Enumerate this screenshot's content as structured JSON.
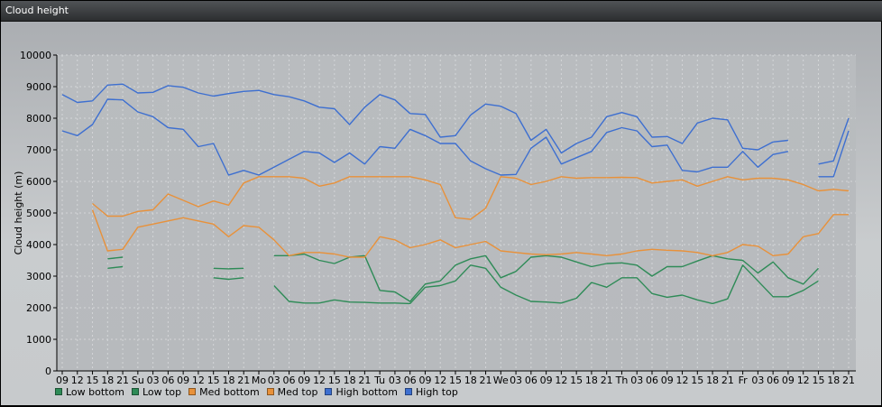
{
  "window": {
    "title": "Cloud height"
  },
  "colors": {
    "low": "#2e8b57",
    "med": "#e8913a",
    "high": "#3d6fd0"
  },
  "chart_data": {
    "type": "line",
    "ylabel": "Cloud height (m)",
    "ylim": [
      0,
      10000
    ],
    "yticks": [
      "0",
      "1000",
      "2000",
      "3000",
      "4000",
      "5000",
      "6000",
      "7000",
      "8000",
      "9000",
      "10000"
    ],
    "grid": true,
    "legend_position": "bottom-left",
    "x": [
      "09",
      "12",
      "15",
      "18",
      "21",
      "Su",
      "03",
      "06",
      "09",
      "12",
      "15",
      "18",
      "21",
      "Mo",
      "03",
      "06",
      "09",
      "12",
      "15",
      "18",
      "21",
      "Tu",
      "03",
      "06",
      "09",
      "12",
      "15",
      "18",
      "21",
      "We",
      "03",
      "06",
      "09",
      "12",
      "15",
      "18",
      "21",
      "Th",
      "03",
      "06",
      "09",
      "12",
      "15",
      "18",
      "21",
      "Fr",
      "03",
      "06",
      "09",
      "12",
      "15",
      "18",
      "21"
    ],
    "series": [
      {
        "name": "Low bottom",
        "color": "#2e8b57",
        "values": [
          null,
          null,
          null,
          3250,
          3300,
          null,
          null,
          null,
          null,
          null,
          2950,
          2900,
          2950,
          null,
          2700,
          2200,
          2150,
          2150,
          2250,
          2180,
          2170,
          2150,
          2150,
          2130,
          2650,
          2700,
          2850,
          3350,
          3250,
          2650,
          2400,
          2200,
          2180,
          2150,
          2300,
          2800,
          2650,
          2950,
          2950,
          2450,
          2330,
          2400,
          2250,
          2130,
          2280,
          3350,
          2850,
          2350,
          2350,
          2550,
          2850,
          null,
          null
        ]
      },
      {
        "name": "Low top",
        "color": "#2e8b57",
        "values": [
          null,
          null,
          null,
          3550,
          3600,
          null,
          null,
          null,
          null,
          null,
          3250,
          3230,
          3250,
          null,
          3650,
          3650,
          3700,
          3500,
          3400,
          3600,
          3650,
          2550,
          2500,
          2200,
          2750,
          2850,
          3350,
          3550,
          3650,
          2950,
          3150,
          3600,
          3650,
          3600,
          3450,
          3300,
          3400,
          3420,
          3350,
          3000,
          3300,
          3300,
          3480,
          3650,
          3550,
          3500,
          3100,
          3450,
          2950,
          2750,
          3250,
          null,
          null
        ]
      },
      {
        "name": "Med bottom",
        "color": "#e8913a",
        "values": [
          null,
          null,
          5100,
          3800,
          3850,
          4550,
          4650,
          4750,
          4850,
          4750,
          4650,
          4250,
          4600,
          4550,
          4150,
          3650,
          3750,
          3750,
          3700,
          3600,
          3600,
          4250,
          4150,
          3900,
          4000,
          4150,
          3900,
          4000,
          4100,
          3800,
          3750,
          3700,
          3680,
          3700,
          3750,
          3700,
          3650,
          3700,
          3800,
          3850,
          3820,
          3800,
          3750,
          3650,
          3750,
          4000,
          3950,
          3650,
          3700,
          4250,
          4350,
          4950,
          4950
        ]
      },
      {
        "name": "Med top",
        "color": "#e8913a",
        "values": [
          null,
          null,
          5300,
          4900,
          4900,
          5050,
          5100,
          5600,
          5400,
          5200,
          5380,
          5250,
          5950,
          6150,
          6150,
          6150,
          6100,
          5850,
          5950,
          6150,
          6150,
          6150,
          6150,
          6150,
          6050,
          5900,
          4850,
          4800,
          5150,
          6150,
          6100,
          5900,
          6000,
          6150,
          6100,
          6120,
          6120,
          6130,
          6120,
          5950,
          6000,
          6050,
          5850,
          6000,
          6150,
          6050,
          6100,
          6100,
          6050,
          5900,
          5700,
          5750,
          5700
        ]
      },
      {
        "name": "High bottom",
        "color": "#3d6fd0",
        "values": [
          7600,
          7450,
          7800,
          8600,
          8580,
          8200,
          8050,
          7700,
          7650,
          7100,
          7200,
          6200,
          6350,
          6200,
          6450,
          6700,
          6950,
          6900,
          6600,
          6900,
          6550,
          7100,
          7050,
          7650,
          7450,
          7200,
          7200,
          6650,
          6400,
          6200,
          6220,
          7050,
          7400,
          6550,
          6750,
          6950,
          7550,
          7700,
          7600,
          7100,
          7150,
          6350,
          6300,
          6450,
          6450,
          6950,
          6450,
          6850,
          6950,
          null,
          6150,
          6150,
          7600
        ]
      },
      {
        "name": "High top",
        "color": "#3d6fd0",
        "values": [
          8750,
          8500,
          8550,
          9050,
          9080,
          8800,
          8820,
          9030,
          8980,
          8800,
          8700,
          8780,
          8850,
          8880,
          8750,
          8680,
          8550,
          8350,
          8300,
          7800,
          8350,
          8750,
          8580,
          8150,
          8120,
          7400,
          7450,
          8100,
          8450,
          8380,
          8150,
          7300,
          7650,
          6900,
          7200,
          7400,
          8050,
          8180,
          8050,
          7400,
          7420,
          7200,
          7850,
          8000,
          7950,
          7050,
          7000,
          7250,
          7300,
          null,
          6550,
          6650,
          8000
        ]
      }
    ]
  }
}
